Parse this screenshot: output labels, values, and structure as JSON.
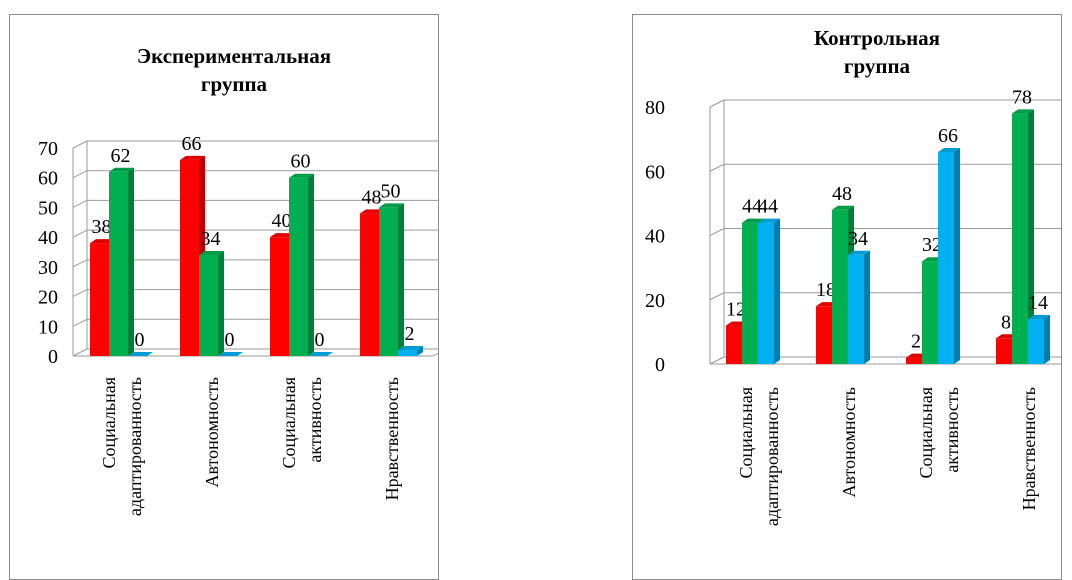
{
  "chart_data": [
    {
      "type": "bar",
      "title": [
        "Экспериментальная",
        "группа"
      ],
      "categories": [
        [
          "Социальная",
          "адаптированность"
        ],
        [
          "Автономность"
        ],
        [
          "Социальная",
          "активность"
        ],
        [
          "Нравственность"
        ]
      ],
      "series": [
        {
          "color": "#ff0000",
          "values": [
            38,
            66,
            40,
            48
          ]
        },
        {
          "color": "#00b050",
          "values": [
            62,
            34,
            60,
            50
          ]
        },
        {
          "color": "#00b0f0",
          "values": [
            0,
            0,
            0,
            2
          ]
        }
      ],
      "ylim": [
        0,
        70
      ],
      "yticks": [
        0,
        10,
        20,
        30,
        40,
        50,
        60,
        70
      ],
      "grid": true,
      "legend": "none"
    },
    {
      "type": "bar",
      "title": [
        "Контрольная",
        "группа"
      ],
      "categories": [
        [
          "Социальная",
          "адаптированность"
        ],
        [
          "Автономность"
        ],
        [
          "Социальная",
          "активность"
        ],
        [
          "Нравственность"
        ]
      ],
      "series": [
        {
          "color": "#ff0000",
          "values": [
            12,
            18,
            2,
            8
          ]
        },
        {
          "color": "#00b050",
          "values": [
            44,
            48,
            32,
            78
          ]
        },
        {
          "color": "#00b0f0",
          "values": [
            44,
            34,
            66,
            14
          ]
        }
      ],
      "ylim": [
        0,
        80
      ],
      "yticks": [
        0,
        20,
        40,
        60,
        80
      ],
      "grid": true,
      "legend": "none"
    }
  ]
}
